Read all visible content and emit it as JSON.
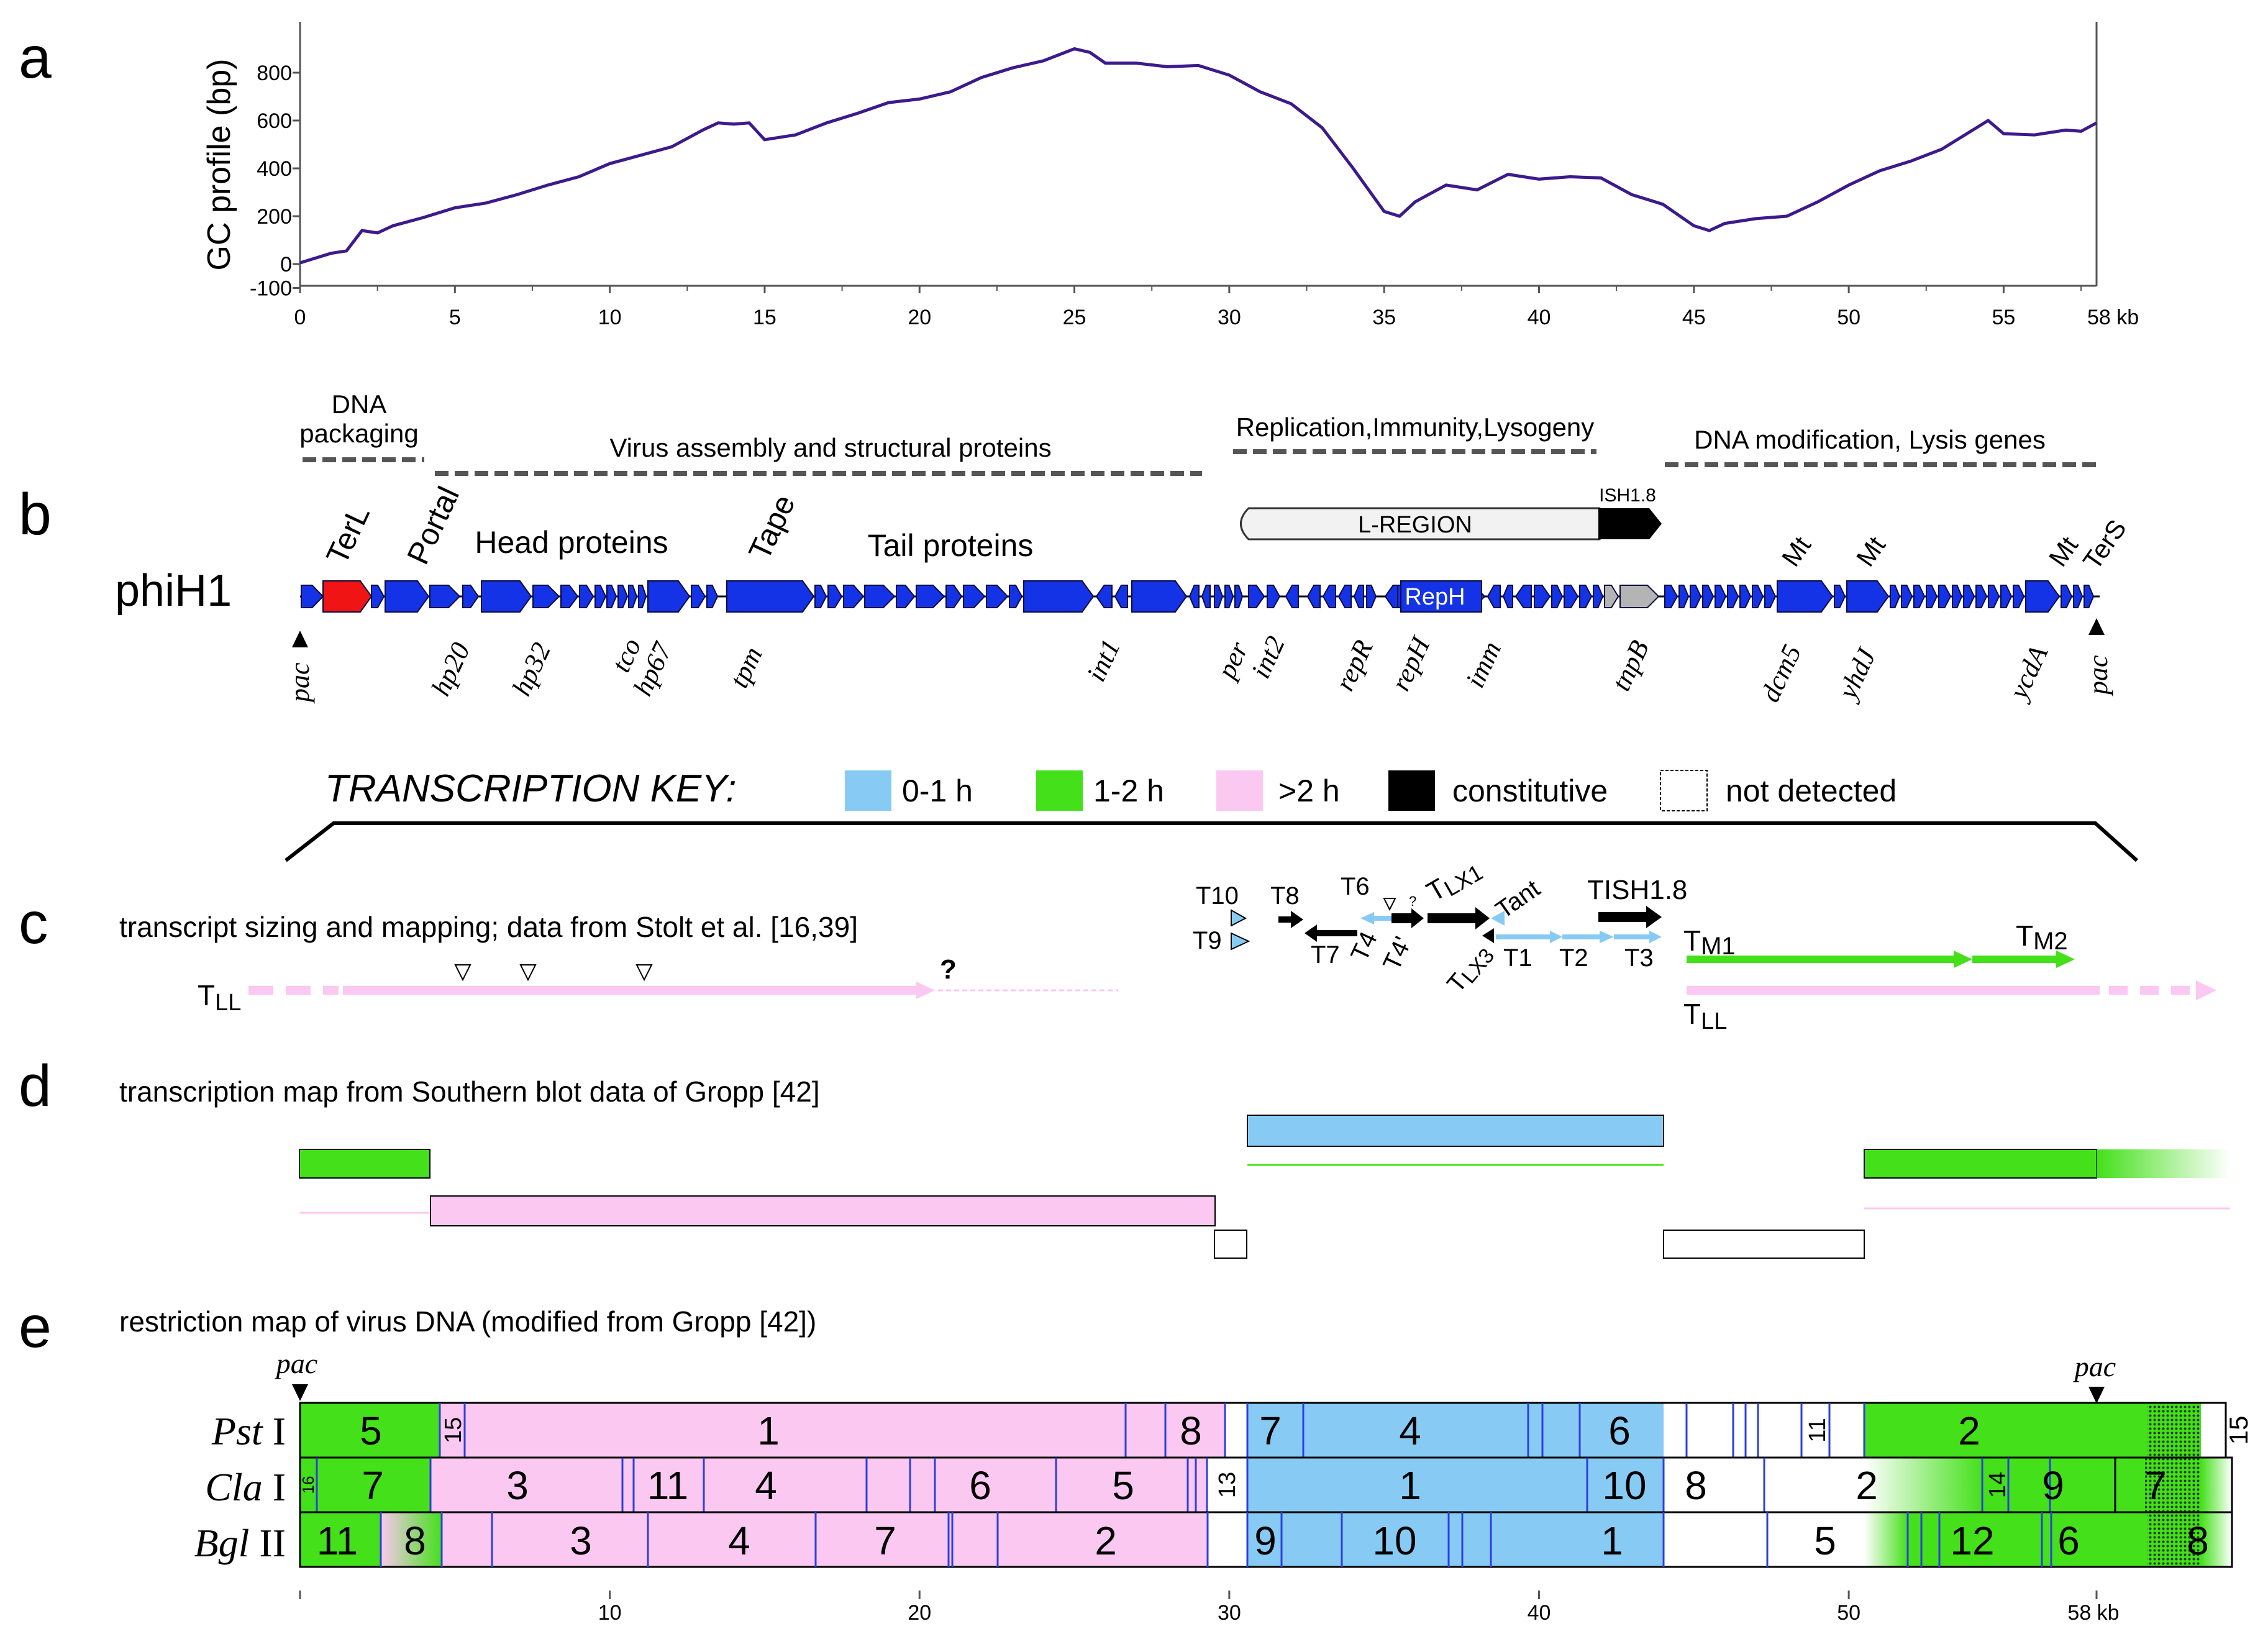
{
  "panels": {
    "a": {
      "letter": "a",
      "ylabel": "GC profile (bp)",
      "yticks": [
        "800",
        "600",
        "400",
        "200",
        "0",
        "-100"
      ],
      "xticks": [
        "0",
        "5",
        "10",
        "15",
        "20",
        "25",
        "30",
        "35",
        "40",
        "45",
        "50",
        "55"
      ],
      "xend_label": "58 kb",
      "line_color": "#3d1a8c"
    },
    "b": {
      "letter": "b",
      "phage": "phiH1",
      "regions": {
        "packaging_line1": "DNA",
        "packaging_line2": "packaging",
        "assembly": "Virus assembly and structural proteins",
        "replication": "Replication,Immunity,Lysogeny",
        "modification": "DNA modification, Lysis genes"
      },
      "lregion": "L-REGION",
      "ish": "ISH1.8",
      "upper_labels": {
        "terl": "TerL",
        "portal": "Portal",
        "head": "Head proteins",
        "tape": "Tape",
        "tail": "Tail proteins",
        "mt1": "Mt",
        "mt2": "Mt",
        "mt3": "Mt",
        "ters": "TerS"
      },
      "reph": "RepH",
      "lower_labels": {
        "pac1": "pac",
        "hp20": "hp20",
        "hp32": "hp32",
        "tco": "tco",
        "hp67": "hp67",
        "tpm": "tpm",
        "int1": "int1",
        "per": "per",
        "int2": "int2",
        "repR": "repR",
        "repH": "repH",
        "imm": "imm",
        "tnpB": "tnpB",
        "dcm5": "dcm5",
        "yhdJ": "yhdJ",
        "ycdA": "ycdA",
        "pac2": "pac"
      }
    },
    "key": {
      "title": "TRANSCRIPTION KEY:",
      "k1": "0-1 h",
      "k2": "1-2 h",
      "k3": ">2 h",
      "k4": "constitutive",
      "k5": "not detected",
      "colors": {
        "blue": "#87cbf4",
        "green": "#44e01a",
        "pink": "#fbc8f1",
        "black": "#000000"
      }
    },
    "c": {
      "letter": "c",
      "title": "transcript sizing and mapping; data from Stolt et al. [16,39]",
      "tll_left": "T",
      "tll_left_sub": "LL",
      "question": "?",
      "t10": "T10",
      "t9": "T9",
      "t8": "T8",
      "t6": "T6",
      "t7": "T7",
      "t4": "T4",
      "t4p": "T4'",
      "tq": "?",
      "tlx1": "T",
      "tlx1_sub": "LX1",
      "tant": "Tant",
      "tish": "T",
      "tish_sub": "ISH1.8",
      "tlx3": "T",
      "tlx3_sub": "LX3",
      "t1": "T1",
      "t2": "T2",
      "t3": "T3",
      "tm1": "T",
      "tm1_sub": "M1",
      "tm2": "T",
      "tm2_sub": "M2",
      "tll_right": "T",
      "tll_right_sub": "LL"
    },
    "d": {
      "letter": "d",
      "title": "transcription map from Southern blot data of Gropp [42]"
    },
    "e": {
      "letter": "e",
      "title": "restriction map of virus DNA (modified from Gropp [42])",
      "pac_left": "pac",
      "pac_right": "pac",
      "rows": {
        "pst": {
          "name": "Pst",
          "suffix": " I"
        },
        "cla": {
          "name": "Cla",
          "suffix": " I"
        },
        "bgl": {
          "name": "Bgl",
          "suffix": " II"
        }
      },
      "pst_frags": [
        "5",
        "15",
        "1",
        "8",
        "7",
        "4",
        "6",
        "11",
        "2",
        "15"
      ],
      "cla_frags": [
        "16",
        "7",
        "3",
        "11",
        "4",
        "6",
        "5",
        "13",
        "1",
        "10",
        "8",
        "2",
        "14",
        "9",
        "7"
      ],
      "bgl_frags": [
        "11",
        "8",
        "3",
        "4",
        "7",
        "2",
        "9",
        "10",
        "1",
        "5",
        "12",
        "6",
        "8"
      ],
      "xticks": [
        "10",
        "20",
        "30",
        "40",
        "50"
      ],
      "xend_label": "58 kb"
    }
  }
}
